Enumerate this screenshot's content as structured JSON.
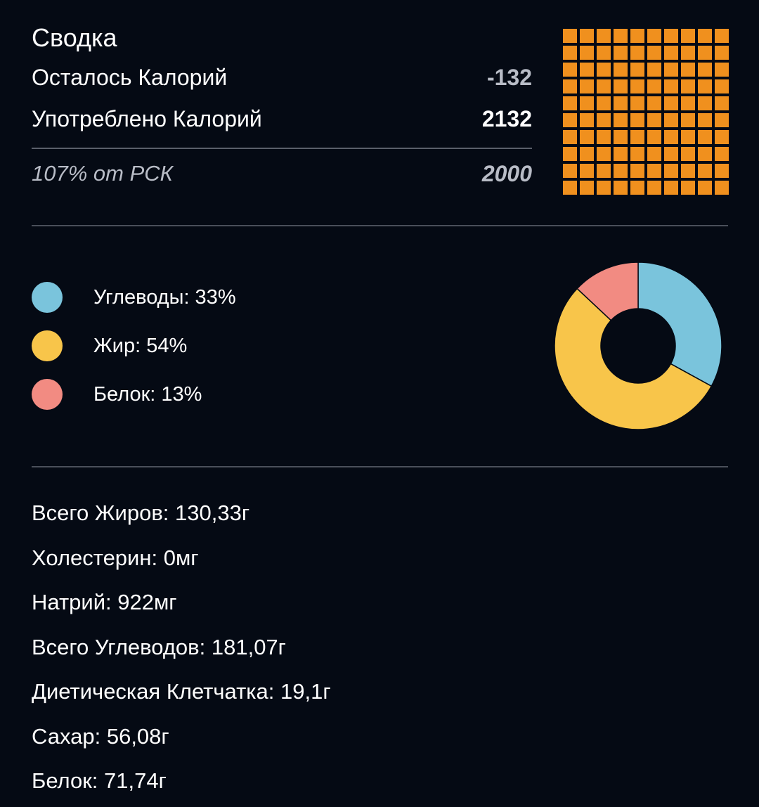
{
  "summary": {
    "title": "Сводка",
    "remaining_label": "Осталось Калорий",
    "remaining_value": "-132",
    "consumed_label": "Употреблено Калорий",
    "consumed_value": "2132",
    "percent_label": "107% от РСК",
    "goal_value": "2000",
    "grid": {
      "filled_cells": 100,
      "total_cells": 100,
      "color": "#f0901e"
    }
  },
  "macros": {
    "items": [
      {
        "label": "Углеводы: 33%",
        "percent": 33,
        "color": "#7ac4dc"
      },
      {
        "label": "Жир: 54%",
        "percent": 54,
        "color": "#f8c54a"
      },
      {
        "label": "Белок: 13%",
        "percent": 13,
        "color": "#f28b82"
      }
    ]
  },
  "chart_data": {
    "type": "pie",
    "categories": [
      "Углеводы",
      "Жир",
      "Белок"
    ],
    "values": [
      33,
      54,
      13
    ],
    "colors": [
      "#7ac4dc",
      "#f8c54a",
      "#f28b82"
    ],
    "donut": true
  },
  "nutrients": [
    "Всего Жиров: 130,33г",
    "Холестерин: 0мг",
    "Натрий: 922мг",
    "Всего Углеводов: 181,07г",
    "Диетическая Клетчатка: 19,1г",
    "Сахар: 56,08г",
    "Белок: 71,74г"
  ]
}
